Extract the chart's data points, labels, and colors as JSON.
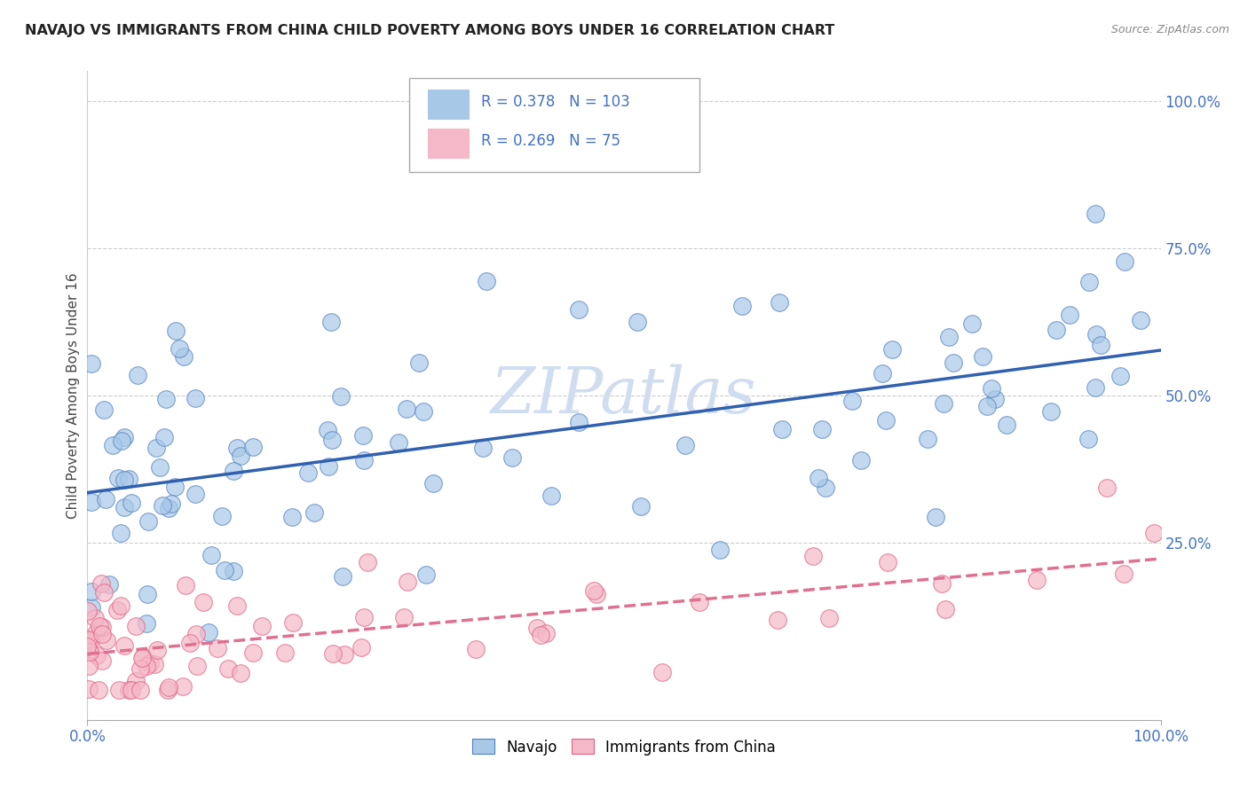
{
  "title": "NAVAJO VS IMMIGRANTS FROM CHINA CHILD POVERTY AMONG BOYS UNDER 16 CORRELATION CHART",
  "source": "Source: ZipAtlas.com",
  "ylabel": "Child Poverty Among Boys Under 16",
  "legend_navajo": "Navajo",
  "legend_china": "Immigrants from China",
  "R_navajo": 0.378,
  "N_navajo": 103,
  "R_china": 0.269,
  "N_china": 75,
  "color_navajo": "#a8c8e8",
  "color_china": "#f4b8c8",
  "edge_navajo": "#5080c0",
  "edge_china": "#e06080",
  "trendline_navajo": "#3060b0",
  "trendline_china": "#e07090",
  "watermark_color": "#d0ddf0",
  "nav_intercept": 35.0,
  "nav_slope": 0.2,
  "china_intercept": 5.0,
  "china_slope": 0.18
}
